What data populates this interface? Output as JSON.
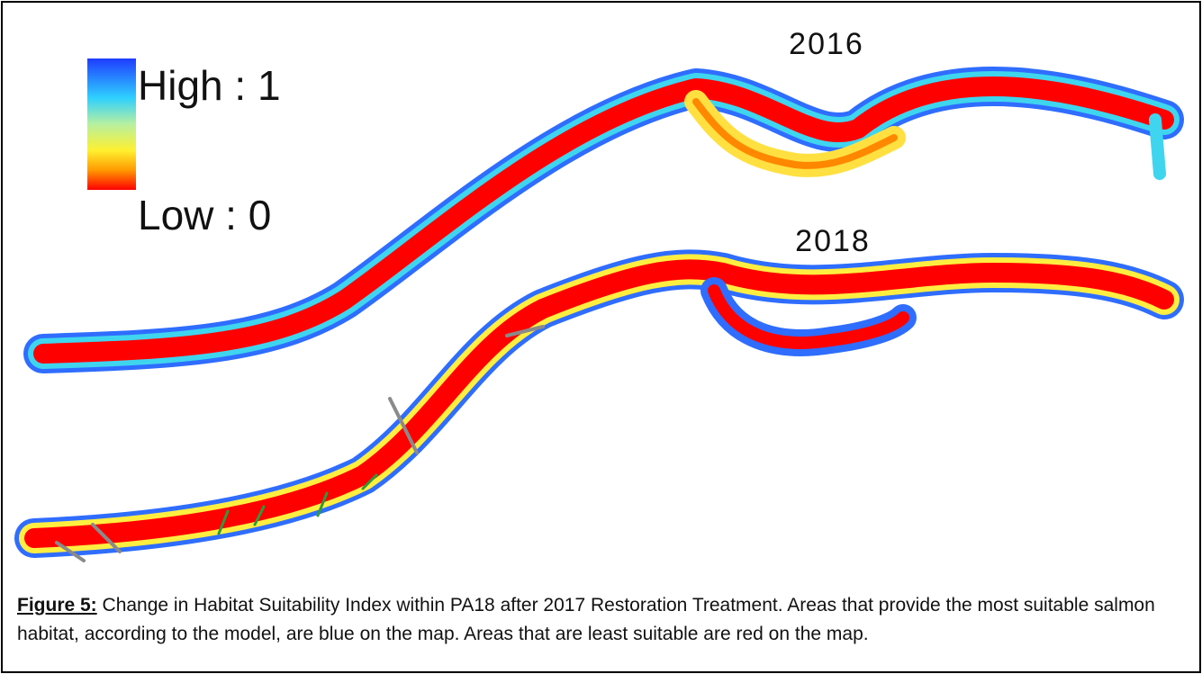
{
  "map": {
    "labels": [
      "2016",
      "2018"
    ],
    "legend": {
      "high": "High : 1",
      "low": "Low : 0"
    }
  },
  "caption": {
    "label": "Figure 5:",
    "text": "Change in Habitat Suitability Index within PA18 after 2017 Restoration Treatment. Areas that provide the most suitable salmon habitat, according to the model, are blue on the map.  Areas that are least suitable are red on the map."
  }
}
